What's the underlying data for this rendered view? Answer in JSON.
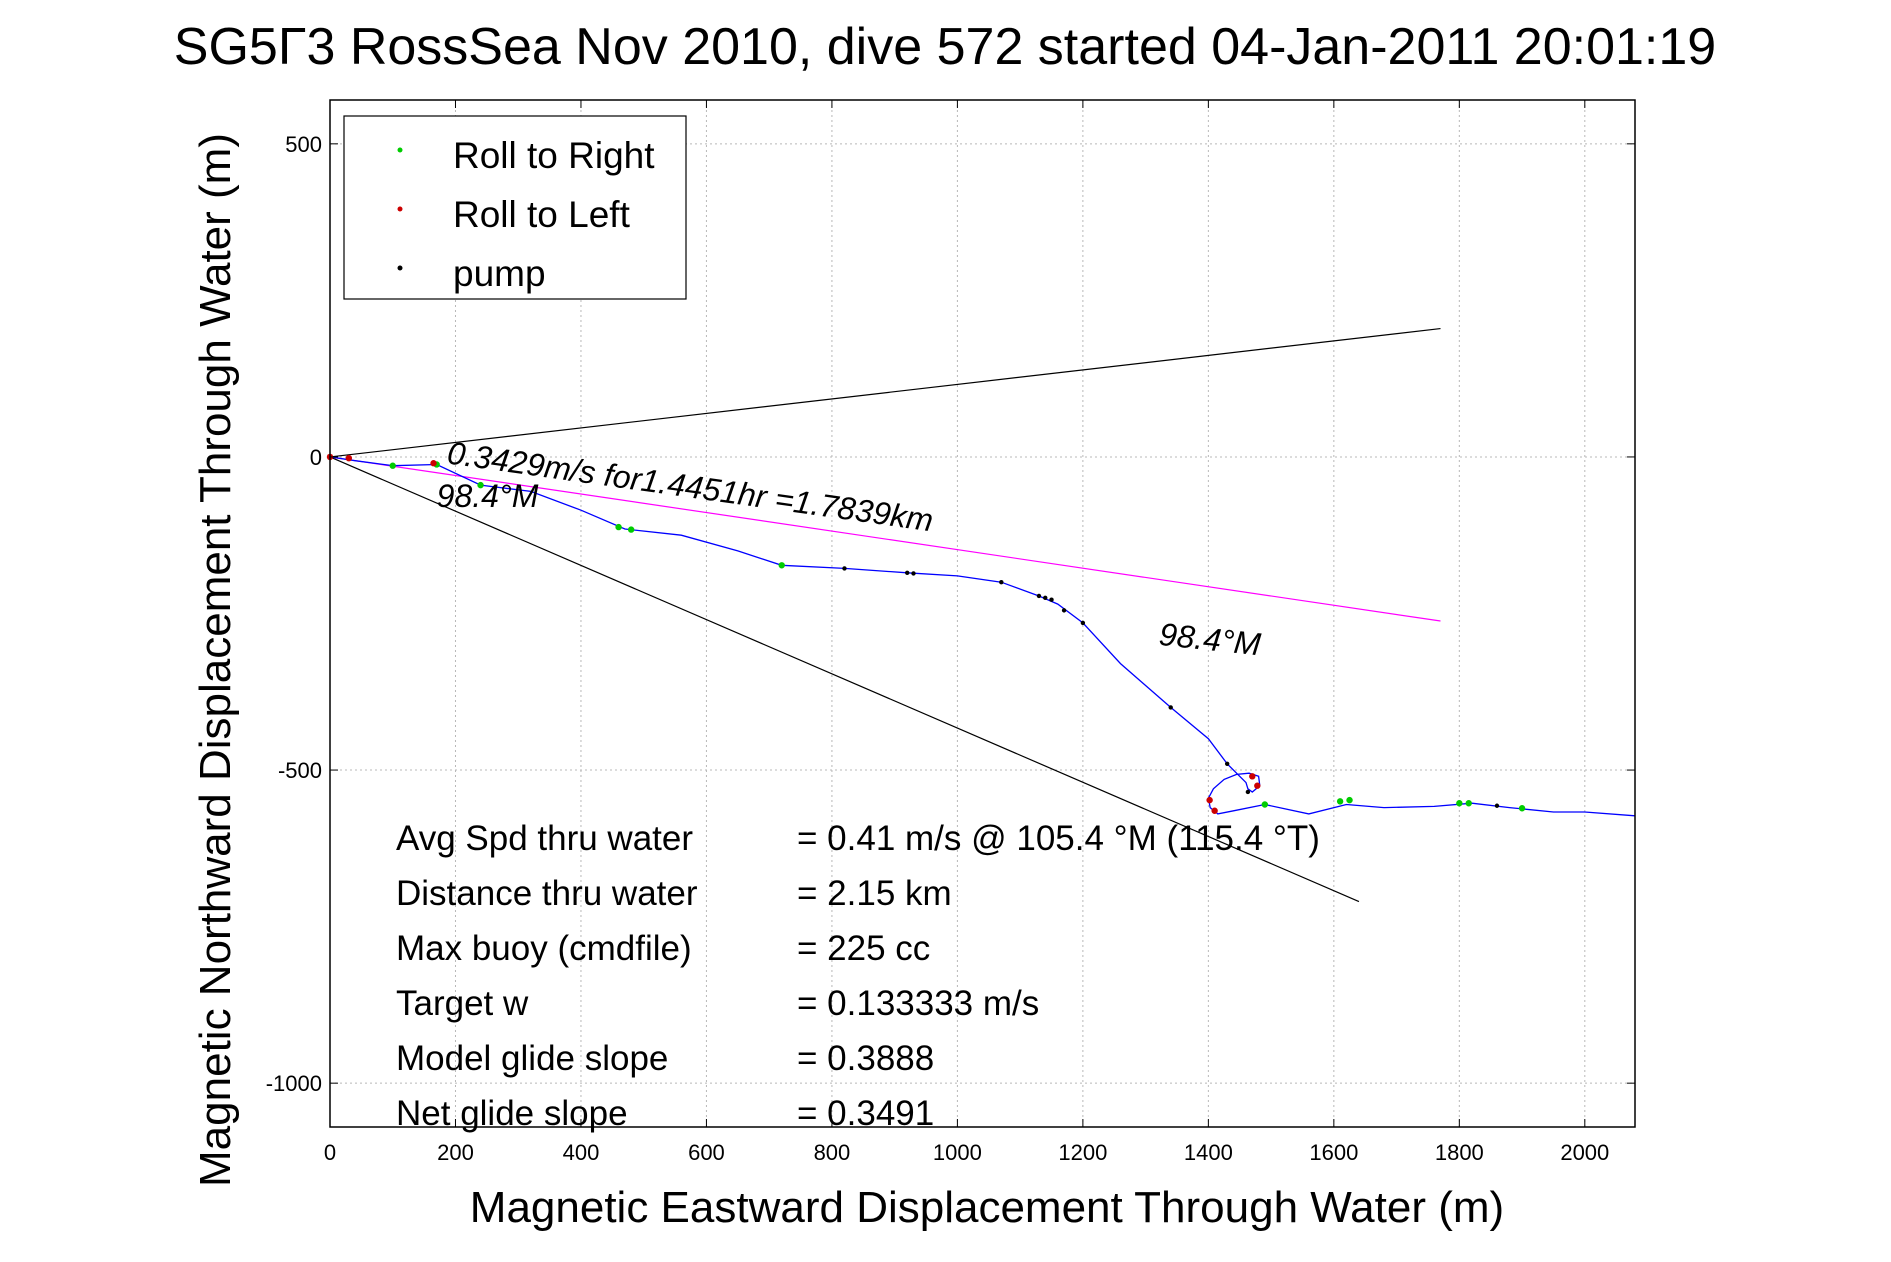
{
  "chart_data": {
    "type": "scatter",
    "title": "SG5Γ3 RossSea Nov 2010, dive 572 started 04-Jan-2011 20:01:19",
    "xlabel": "Magnetic Eastward Displacement Through Water (m)",
    "ylabel": "Magnetic Northward Displacement Through Water (m)",
    "xlim": [
      0,
      2080
    ],
    "ylim": [
      -1070,
      570
    ],
    "xticks": [
      0,
      200,
      400,
      600,
      800,
      1000,
      1200,
      1400,
      1600,
      1800,
      2000
    ],
    "yticks": [
      500,
      0,
      -500,
      -1000
    ],
    "grid": true,
    "legend": {
      "placement": "top-left",
      "entries": [
        {
          "name": "Roll to Right",
          "color": "#00cc00"
        },
        {
          "name": "Roll to Left",
          "color": "#cc0000"
        },
        {
          "name": "pump",
          "color": "#000000"
        }
      ]
    },
    "track": {
      "name": "track",
      "color": "#0000ff",
      "x": [
        0,
        40,
        100,
        170,
        240,
        320,
        400,
        470,
        560,
        650,
        720,
        820,
        920,
        1000,
        1070,
        1130,
        1160,
        1200,
        1260,
        1340,
        1400,
        1430,
        1450,
        1460,
        1463,
        1470,
        1482,
        1480,
        1465,
        1445,
        1425,
        1408,
        1400,
        1403,
        1415,
        1440,
        1490,
        1560,
        1620,
        1680,
        1760,
        1820,
        1880,
        1950,
        2000,
        2080
      ],
      "y": [
        0,
        -6,
        -14,
        -12,
        -45,
        -55,
        -85,
        -115,
        -125,
        -150,
        -173,
        -178,
        -185,
        -190,
        -200,
        -222,
        -235,
        -265,
        -330,
        -400,
        -450,
        -490,
        -510,
        -520,
        -530,
        -535,
        -525,
        -510,
        -505,
        -507,
        -515,
        -530,
        -545,
        -560,
        -570,
        -565,
        -555,
        -570,
        -555,
        -560,
        -558,
        -553,
        -560,
        -567,
        -567,
        -573
      ]
    },
    "markers": {
      "roll_right": [
        [
          100,
          -14
        ],
        [
          170,
          -12
        ],
        [
          240,
          -45
        ],
        [
          460,
          -112
        ],
        [
          480,
          -116
        ],
        [
          720,
          -173
        ],
        [
          1490,
          -555
        ],
        [
          1610,
          -550
        ],
        [
          1625,
          -548
        ],
        [
          1800,
          -553
        ],
        [
          1815,
          -553
        ],
        [
          1900,
          -561
        ]
      ],
      "roll_left": [
        [
          0,
          0
        ],
        [
          30,
          -2
        ],
        [
          165,
          -10
        ],
        [
          1402,
          -548
        ],
        [
          1410,
          -565
        ],
        [
          1470,
          -510
        ],
        [
          1478,
          -525
        ]
      ],
      "pump": [
        [
          820,
          -178
        ],
        [
          920,
          -185
        ],
        [
          930,
          -186
        ],
        [
          1070,
          -200
        ],
        [
          1130,
          -222
        ],
        [
          1140,
          -225
        ],
        [
          1150,
          -228
        ],
        [
          1170,
          -245
        ],
        [
          1200,
          -265
        ],
        [
          1340,
          -400
        ],
        [
          1430,
          -490
        ],
        [
          1463,
          -535
        ],
        [
          1860,
          -557
        ]
      ]
    },
    "reference_lines": [
      {
        "name": "heading-line-upper",
        "color": "#000000",
        "x": [
          0,
          1770
        ],
        "y": [
          0,
          205
        ]
      },
      {
        "name": "heading-line-lower",
        "color": "#000000",
        "x": [
          0,
          1640
        ],
        "y": [
          0,
          -710
        ]
      },
      {
        "name": "net-displacement",
        "color": "#ff00ff",
        "x": [
          0,
          1770
        ],
        "y": [
          0,
          -262
        ]
      }
    ],
    "annotations": [
      {
        "text": "0.3429m/s for1.4451hr =1.7839km",
        "x": 185,
        "y": -10,
        "angle": 8
      },
      {
        "text": "98.4°M",
        "x": 170,
        "y": -80,
        "angle": 0
      },
      {
        "text": "98.4°M",
        "x": 1320,
        "y": -300,
        "angle": 6
      }
    ],
    "stats": [
      {
        "label": "Avg Spd thru water",
        "value": "=  0.41 m/s @ 105.4  °M (115.4 °T)"
      },
      {
        "label": "Distance thru water",
        "value": "=  2.15 km"
      },
      {
        "label": "Max buoy (cmdfile)",
        "value": "= 225 cc"
      },
      {
        "label": "Target w",
        "value": "= 0.133333 m/s"
      },
      {
        "label": "Model glide slope",
        "value": "= 0.3888"
      },
      {
        "label": "Net glide slope",
        "value": "= 0.3491"
      }
    ]
  }
}
